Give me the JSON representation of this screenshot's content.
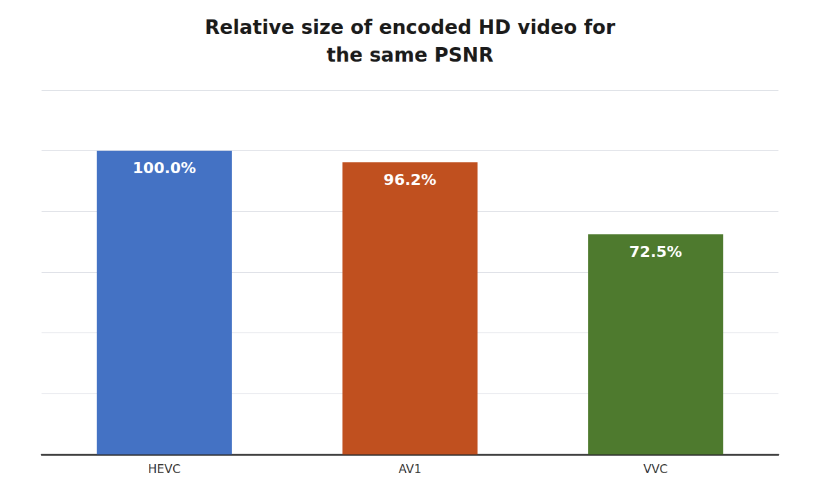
{
  "chart_data": {
    "type": "bar",
    "title": "Relative size of encoded HD video for\nthe same PSNR",
    "categories": [
      "HEVC",
      "AV1",
      "VVC"
    ],
    "values": [
      100.0,
      96.2,
      72.5
    ],
    "value_labels": [
      "100.0%",
      "96.2%",
      "72.5%"
    ],
    "colors": [
      "#4472C4",
      "#C0501F",
      "#4E7A2E"
    ],
    "ylim": [
      0,
      120
    ],
    "yticks": [
      0,
      20,
      40,
      60,
      80,
      100,
      120
    ],
    "grid": true,
    "data_labels": true,
    "tick_labels": "x"
  }
}
